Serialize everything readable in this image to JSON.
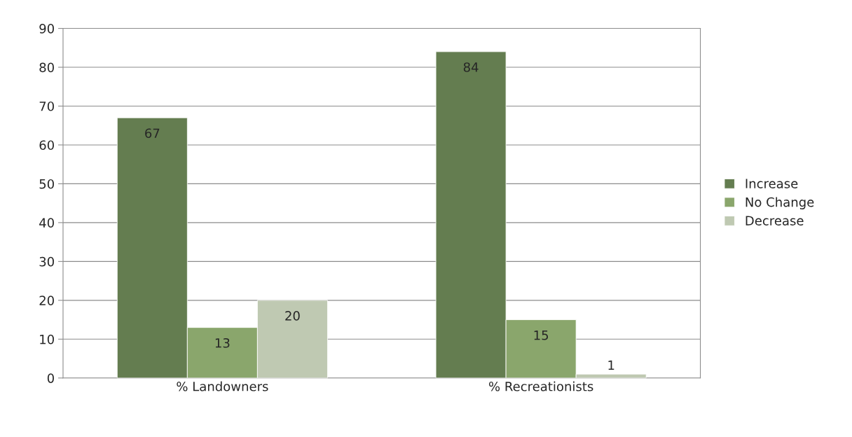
{
  "chart_data": {
    "type": "bar",
    "categories": [
      "% Landowners",
      "% Recreationists"
    ],
    "series": [
      {
        "name": "Increase",
        "color": "#647d50",
        "values": [
          67,
          84
        ]
      },
      {
        "name": "No Change",
        "color": "#8aa66c",
        "values": [
          13,
          15
        ]
      },
      {
        "name": "Decrease",
        "color": "#bfc9b2",
        "values": [
          20,
          1
        ]
      }
    ],
    "ylim": [
      0,
      90
    ],
    "yticks": [
      0,
      10,
      20,
      30,
      40,
      50,
      60,
      70,
      80,
      90
    ],
    "grid": "y",
    "legend": "right",
    "data_labels": true
  }
}
